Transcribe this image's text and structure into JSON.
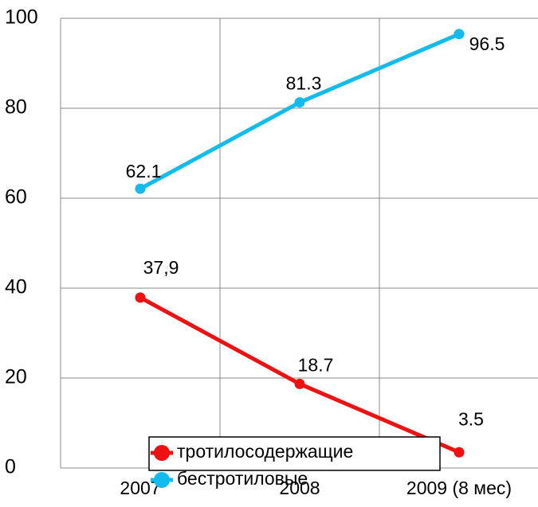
{
  "chart_data": {
    "type": "line",
    "categories": [
      "2007",
      "2008",
      "2009 (8 мес)"
    ],
    "series": [
      {
        "name": "тротилосодержащие",
        "color": "#ee1111",
        "values": [
          37.9,
          18.7,
          3.5
        ],
        "value_labels": [
          "37,9",
          "18.7",
          "3.5"
        ]
      },
      {
        "name": "бестротиловые",
        "color": "#11bbee",
        "values": [
          62.1,
          81.3,
          96.5
        ]
      }
    ],
    "ylim": [
      0,
      100
    ],
    "yticks": [
      0,
      20,
      40,
      60,
      80,
      100
    ],
    "grid": true,
    "legend": "bottom"
  }
}
